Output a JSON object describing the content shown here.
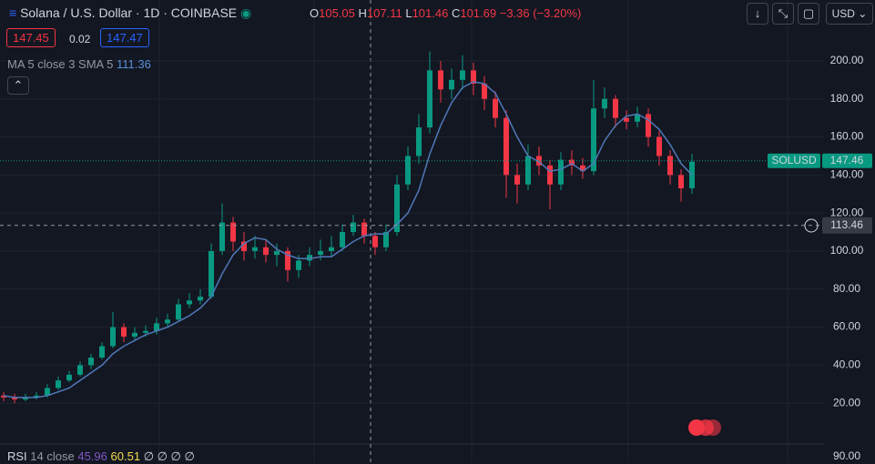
{
  "header": {
    "title": "Solana / U.S. Dollar · 1D · COINBASE",
    "o_label": "O",
    "o": 105.05,
    "h_label": "H",
    "h": 107.11,
    "l_label": "L",
    "l": 101.46,
    "c_label": "C",
    "c": 101.69,
    "change": "−3.36 (−3.20%)",
    "sell": 147.45,
    "spread": 0.02,
    "buy": 147.47,
    "currency": "USD",
    "rsi_name": "RSI",
    "rsi_settings": "14 close",
    "rsi_value": 45.96,
    "rsi_ma": 60.51,
    "rsi_empty": "∅ ∅ ∅ ∅",
    "rsi_axis_label": "90.00"
  },
  "chart_data": {
    "type": "candlestick",
    "up_color": "#089981",
    "down_color": "#f23645",
    "open": [
      24,
      23,
      22,
      23,
      24,
      28,
      32,
      35,
      40,
      44,
      50,
      60,
      55,
      57,
      58,
      62,
      64,
      72,
      74,
      76,
      100,
      115,
      105,
      100,
      102,
      98,
      100,
      90,
      95,
      98,
      100,
      102,
      110,
      115,
      108,
      102,
      110,
      135,
      150,
      165,
      195,
      185,
      190,
      195,
      188,
      180,
      170,
      140,
      135,
      150,
      145,
      135,
      148,
      145,
      142,
      175,
      180,
      170,
      168,
      172,
      160,
      150,
      140,
      133
    ],
    "high": [
      26,
      25,
      25,
      26,
      30,
      34,
      37,
      42,
      46,
      52,
      68,
      62,
      60,
      61,
      65,
      67,
      75,
      78,
      80,
      104,
      125,
      118,
      110,
      108,
      106,
      104,
      102,
      98,
      102,
      106,
      108,
      114,
      119,
      117,
      110,
      114,
      140,
      155,
      172,
      205,
      200,
      196,
      203,
      199,
      192,
      184,
      174,
      146,
      156,
      155,
      148,
      152,
      153,
      149,
      190,
      186,
      182,
      174,
      176,
      175,
      163,
      153,
      143,
      151
    ],
    "low": [
      21,
      20,
      21,
      22,
      23,
      27,
      31,
      34,
      38,
      43,
      49,
      52,
      53,
      55,
      56,
      60,
      63,
      70,
      72,
      75,
      98,
      100,
      95,
      96,
      94,
      92,
      84,
      86,
      92,
      95,
      97,
      100,
      108,
      104,
      98,
      100,
      108,
      132,
      146,
      162,
      178,
      180,
      185,
      182,
      174,
      165,
      128,
      125,
      132,
      140,
      122,
      132,
      140,
      138,
      140,
      170,
      165,
      164,
      165,
      155,
      145,
      135,
      126,
      130
    ],
    "close": [
      23,
      22,
      23,
      24,
      28,
      32,
      35,
      40,
      44,
      50,
      60,
      55,
      57,
      58,
      62,
      64,
      72,
      74,
      76,
      100,
      115,
      105,
      100,
      102,
      98,
      100,
      90,
      95,
      98,
      100,
      102,
      110,
      115,
      108,
      102,
      110,
      135,
      150,
      165,
      195,
      185,
      190,
      195,
      188,
      180,
      170,
      140,
      135,
      150,
      145,
      135,
      148,
      145,
      142,
      175,
      180,
      170,
      168,
      172,
      160,
      150,
      140,
      133,
      147
    ],
    "ma": {
      "name": "MA 5 close 3 SMA 5",
      "last": 111.36,
      "color": "#4f78b8",
      "values": [
        24,
        23,
        23,
        23,
        24,
        26,
        28,
        32,
        36,
        40,
        46,
        50,
        53,
        56,
        58,
        60,
        63,
        66,
        70,
        76,
        88,
        98,
        104,
        107,
        106,
        101,
        98,
        96,
        96,
        97,
        97,
        101,
        105,
        108,
        109,
        109,
        114,
        120,
        132,
        151,
        166,
        178,
        186,
        189,
        188,
        183,
        172,
        160,
        150,
        147,
        142,
        143,
        146,
        142,
        146,
        158,
        166,
        171,
        172,
        169,
        164,
        156,
        146,
        140
      ]
    },
    "ylim": [
      0,
      232
    ],
    "yticks": [
      {
        "value": 20,
        "label": "20.00"
      },
      {
        "value": 40,
        "label": "40.00"
      },
      {
        "value": 60,
        "label": "60.00"
      },
      {
        "value": 80,
        "label": "80.00"
      },
      {
        "value": 100,
        "label": "100.00"
      },
      {
        "value": 120,
        "label": "120.00"
      },
      {
        "value": 140,
        "label": "140.00"
      },
      {
        "value": 160,
        "label": "160.00"
      },
      {
        "value": 180,
        "label": "180.00"
      },
      {
        "value": 200,
        "label": "200.00"
      }
    ],
    "grid": true,
    "symbol": "SOLUSD",
    "last_price": 147.46,
    "crosshair_price": 113.46
  }
}
